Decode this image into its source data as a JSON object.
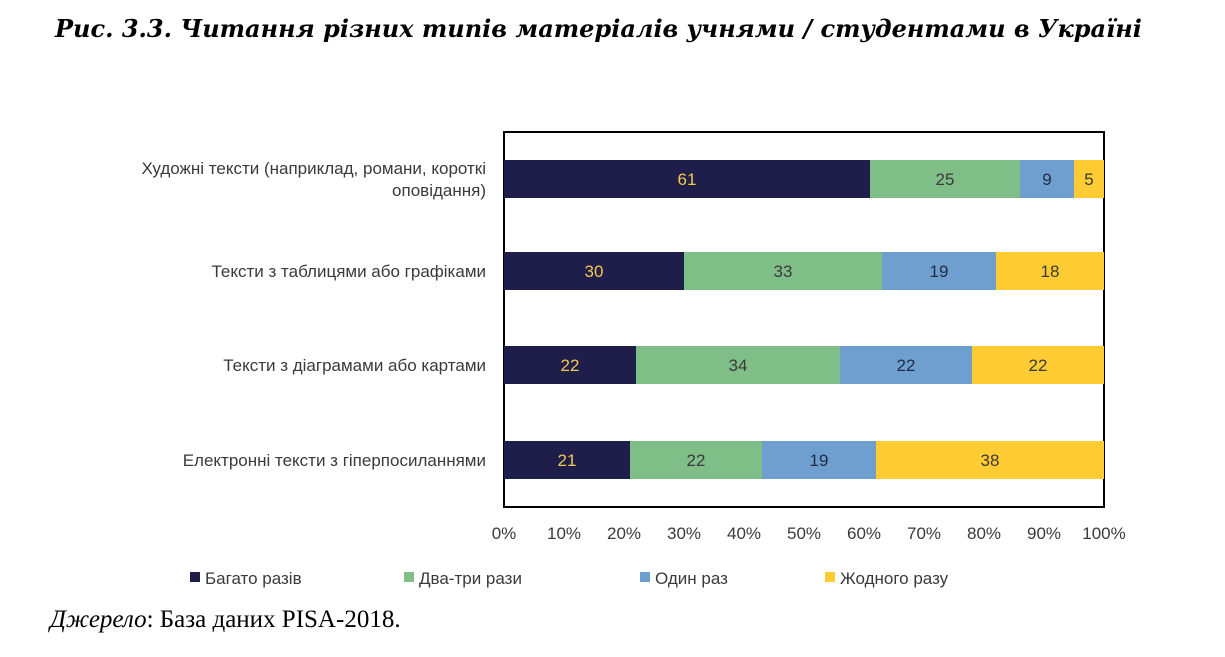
{
  "figure": {
    "title": "Рис. 3.3. Читання різних типів матеріалів учнями / студентами в Україні",
    "source_label": "Джерело",
    "source_text": ": База даних PISA-2018."
  },
  "chart_data": {
    "type": "bar",
    "orientation": "horizontal",
    "stacked": true,
    "categories": [
      [
        "Художні тексти (наприклад,  романи, короткі",
        "оповідання)"
      ],
      [
        "Тексти з таблицями або графіками"
      ],
      [
        "Тексти з діаграмами або картами"
      ],
      [
        "Електронні тексти з гіперпосиланнями"
      ]
    ],
    "series": [
      {
        "name": "Багато разів",
        "color": "#1f1d4a",
        "label_color": "#f2c94c",
        "values": [
          61,
          30,
          22,
          21
        ]
      },
      {
        "name": "Два-три рази",
        "color": "#7fbf87",
        "label_color": "#3a3a3a",
        "values": [
          25,
          33,
          34,
          22
        ]
      },
      {
        "name": "Один раз",
        "color": "#6f9fcf",
        "label_color": "#1f2a44",
        "values": [
          9,
          19,
          22,
          19
        ]
      },
      {
        "name": "Жодного разу",
        "color": "#ffcc33",
        "label_color": "#3a3a3a",
        "values": [
          5,
          18,
          22,
          38
        ]
      }
    ],
    "xlim": [
      0,
      100
    ],
    "xticks": [
      "0%",
      "10%",
      "20%",
      "30%",
      "40%",
      "50%",
      "60%",
      "70%",
      "80%",
      "90%",
      "100%"
    ],
    "legend_position": "bottom",
    "grid": false
  }
}
